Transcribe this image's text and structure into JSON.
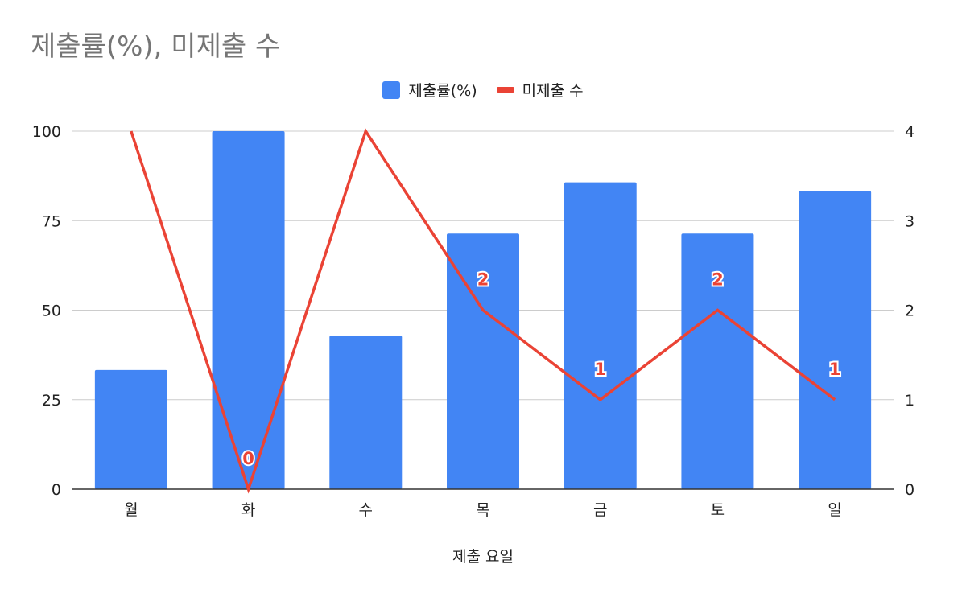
{
  "chart_data": {
    "type": "bar",
    "title": "제출률(%), 미제출 수",
    "xlabel": "제출 요일",
    "ylabel": "",
    "y2label": "",
    "categories": [
      "월",
      "화",
      "수",
      "목",
      "금",
      "토",
      "일"
    ],
    "ylim": [
      0,
      100
    ],
    "y2lim": [
      0,
      4
    ],
    "yticks": [
      "0",
      "25",
      "50",
      "75",
      "100"
    ],
    "y2ticks": [
      "0",
      "1",
      "2",
      "3",
      "4"
    ],
    "grid": true,
    "legend": "top-center",
    "series": [
      {
        "name": "제출률(%)",
        "type": "bar",
        "axis": "left",
        "color": "#4285f4",
        "values": [
          33.3,
          100,
          42.9,
          71.4,
          85.7,
          71.4,
          83.3
        ]
      },
      {
        "name": "미제출 수",
        "type": "line",
        "axis": "right",
        "color": "#ea4335",
        "values": [
          4,
          0,
          4,
          2,
          1,
          2,
          1
        ],
        "data_labels": [
          "",
          "0",
          "",
          "2",
          "1",
          "2",
          "1"
        ]
      }
    ]
  }
}
